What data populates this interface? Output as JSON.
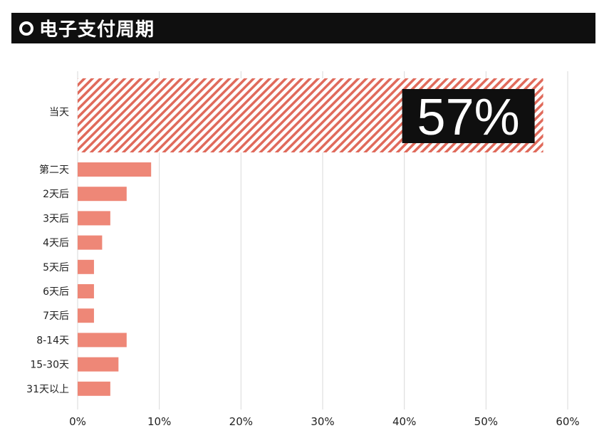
{
  "title": "电子支付周期",
  "colors": {
    "bar": "#ee8777",
    "hatch": "#e06a5b",
    "title_bg": "#0f0f0f",
    "highlight_box": "#0f0f0f"
  },
  "chart_data": {
    "type": "bar",
    "orientation": "horizontal",
    "title": "电子支付周期",
    "categories": [
      "当天",
      "第二天",
      "2天后",
      "3天后",
      "4天后",
      "5天后",
      "6天后",
      "7天后",
      "8-14天",
      "15-30天",
      "31天以上"
    ],
    "values": [
      57,
      9,
      6,
      4,
      3,
      2,
      2,
      2,
      6,
      5,
      4
    ],
    "xlim": [
      0,
      60
    ],
    "xticks": [
      0,
      10,
      20,
      30,
      40,
      50,
      60
    ],
    "xtick_labels": [
      "0%",
      "10%",
      "20%",
      "30%",
      "40%",
      "50%",
      "60%"
    ],
    "highlight": {
      "category": "当天",
      "label": "57%",
      "style": "hatched"
    },
    "grid": "vertical"
  }
}
